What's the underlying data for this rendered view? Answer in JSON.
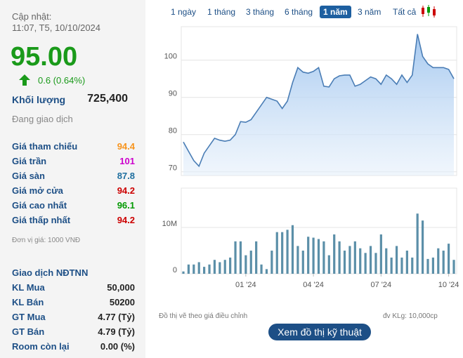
{
  "sidebar": {
    "updated_label": "Cập nhật:",
    "updated_time": "11:07, T5, 10/10/2024",
    "price": "95.00",
    "change": "0.6 (0.64%)",
    "volume_label": "Khối lượng",
    "volume": "725,400",
    "status": "Đang giao dịch",
    "prices": [
      {
        "label": "Giá tham chiếu",
        "value": "94.4",
        "color": "#f7941d"
      },
      {
        "label": "Giá trần",
        "value": "101",
        "color": "#cc00cc"
      },
      {
        "label": "Giá sàn",
        "value": "87.8",
        "color": "#1f6f9f"
      },
      {
        "label": "Giá mở cửa",
        "value": "94.2",
        "color": "#cc0000"
      },
      {
        "label": "Giá cao nhất",
        "value": "96.1",
        "color": "#009900"
      },
      {
        "label": "Giá thấp nhất",
        "value": "94.2",
        "color": "#cc0000"
      }
    ],
    "unit_note": "Đơn vị giá: 1000 VNĐ",
    "foreign_title": "Giao dịch NĐTNN",
    "foreign": [
      {
        "label": "KL Mua",
        "value": "50,000"
      },
      {
        "label": "KL Bán",
        "value": "50200"
      },
      {
        "label": "GT Mua",
        "value": "4.77 (Tỷ)"
      },
      {
        "label": "GT Bán",
        "value": "4.79 (Tỷ)"
      },
      {
        "label": "Room còn lại",
        "value": "0.00 (%)"
      }
    ]
  },
  "tabs": {
    "items": [
      "1 ngày",
      "1 tháng",
      "3 tháng",
      "6 tháng",
      "1 năm",
      "3 năm",
      "Tất cả"
    ],
    "active": 4
  },
  "chart_data": [
    {
      "type": "area",
      "color": "#4a7db5",
      "values": [
        78,
        75.5,
        73,
        71.5,
        75,
        77,
        79,
        78.5,
        78.2,
        78.5,
        80,
        83.5,
        83.3,
        84,
        86,
        88,
        90,
        89.5,
        89,
        87,
        89,
        94,
        98,
        96.8,
        96.5,
        97,
        98,
        93,
        92.8,
        95,
        95.8,
        96,
        96,
        93,
        93.5,
        94.5,
        95.5,
        95,
        93.5,
        96,
        95,
        93.5,
        96,
        94,
        96,
        107,
        101,
        99,
        98,
        98,
        98,
        97.5,
        95
      ],
      "ylim": [
        69,
        109
      ],
      "yticks": [
        70,
        80,
        90,
        100
      ],
      "grid": true
    },
    {
      "type": "bar",
      "color": "#5b8fa8",
      "categories": [
        null,
        null,
        null,
        null,
        null,
        null,
        null,
        null,
        null,
        null,
        null,
        null,
        "01 '24",
        null,
        null,
        null,
        null,
        null,
        null,
        null,
        null,
        null,
        null,
        null,
        null,
        "04 '24",
        null,
        null,
        null,
        null,
        null,
        null,
        null,
        null,
        null,
        null,
        null,
        null,
        "07 '24",
        null,
        null,
        null,
        null,
        null,
        null,
        null,
        null,
        null,
        null,
        null,
        null,
        "10 '24",
        null
      ],
      "values": [
        500000,
        2000000,
        2000000,
        2500000,
        1500000,
        2000000,
        3000000,
        2500000,
        3000000,
        3500000,
        7000000,
        7000000,
        4000000,
        5000000,
        7000000,
        2000000,
        1000000,
        5000000,
        9000000,
        9000000,
        9500000,
        10500000,
        6000000,
        5000000,
        8000000,
        7800000,
        7500000,
        7000000,
        4000000,
        8500000,
        7000000,
        5000000,
        6000000,
        7000000,
        5500000,
        4500000,
        6000000,
        4500000,
        8500000,
        5500000,
        3500000,
        6000000,
        3500000,
        5000000,
        3500000,
        13000000,
        11500000,
        3200000,
        3500000,
        5500000,
        5000000,
        6500000,
        3000000
      ],
      "ylim": [
        0,
        18500000
      ],
      "yticks": [
        0,
        {
          "value": 10000000,
          "label": "10M"
        }
      ],
      "grid": true
    }
  ],
  "notes": {
    "adjusted": "Đồ thị vẽ theo giá điều chỉnh",
    "volume_unit": "đv KLg: 10,000cp"
  },
  "button": "Xem đồ thị kỹ thuật"
}
